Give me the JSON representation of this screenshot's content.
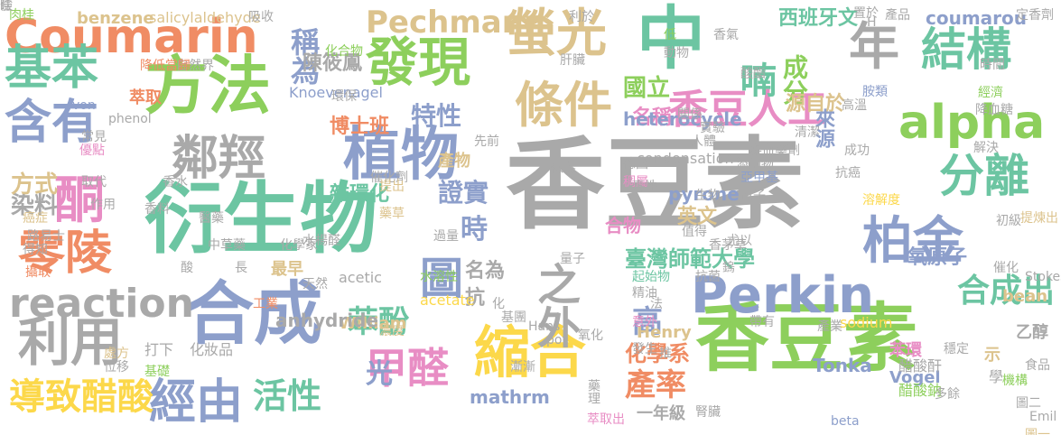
{
  "palette": {
    "gray": "#a9a9a9",
    "green": "#8dcf5c",
    "teal": "#6cc5a2",
    "blue": "#8d9fcb",
    "orange": "#f08c64",
    "pink": "#e88dc4",
    "yellow": "#fcd84a",
    "tan": "#dcc38d"
  },
  "words": [
    {
      "text": "香豆素",
      "color": "gray"
    },
    {
      "text": "香豆素",
      "color": "green"
    },
    {
      "text": "衍生物",
      "color": "teal"
    },
    {
      "text": "方法",
      "color": "green"
    },
    {
      "text": "合成",
      "color": "blue"
    },
    {
      "text": "中",
      "color": "teal"
    },
    {
      "text": "Perkin",
      "color": "blue"
    },
    {
      "text": "Coumarin",
      "color": "orange"
    },
    {
      "text": "螢光",
      "color": "tan"
    },
    {
      "text": "發現",
      "color": "green"
    },
    {
      "text": "植物",
      "color": "blue"
    },
    {
      "text": "縮合",
      "color": "yellow"
    },
    {
      "text": "年",
      "color": "gray"
    },
    {
      "text": "結構",
      "color": "teal"
    },
    {
      "text": "基苯",
      "color": "teal"
    },
    {
      "text": "含有",
      "color": "blue"
    },
    {
      "text": "利用",
      "color": "gray"
    },
    {
      "text": "零陵",
      "color": "orange"
    },
    {
      "text": "alpha",
      "color": "green"
    },
    {
      "text": "柏金",
      "color": "blue"
    },
    {
      "text": "分離",
      "color": "teal"
    },
    {
      "text": "鄰羥",
      "color": "gray"
    },
    {
      "text": "香豆人工",
      "color": "pink"
    },
    {
      "text": "條件",
      "color": "tan"
    },
    {
      "text": "之外",
      "color": "gray"
    },
    {
      "text": "酮",
      "color": "pink"
    },
    {
      "text": "甲醛",
      "color": "pink"
    },
    {
      "text": "經由",
      "color": "blue"
    },
    {
      "text": "圖",
      "color": "blue"
    },
    {
      "text": "reaction",
      "color": "gray"
    },
    {
      "text": "導致醋酸",
      "color": "yellow"
    },
    {
      "text": "活性",
      "color": "teal"
    },
    {
      "text": "喃",
      "color": "teal"
    },
    {
      "text": "Pechmann",
      "color": "tan"
    },
    {
      "text": "稱為",
      "color": "blue"
    },
    {
      "text": "合成出",
      "color": "teal"
    },
    {
      "text": "特性",
      "color": "blue"
    },
    {
      "text": "苯酚",
      "color": "teal"
    },
    {
      "text": "證實",
      "color": "blue"
    },
    {
      "text": "時",
      "color": "blue"
    },
    {
      "text": "產率",
      "color": "orange"
    },
    {
      "text": "成分",
      "color": "green"
    },
    {
      "text": "國立",
      "color": "green"
    },
    {
      "text": "染料",
      "color": "gray"
    },
    {
      "text": "方式",
      "color": "tan"
    },
    {
      "text": "臺灣師範大學",
      "color": "teal"
    },
    {
      "text": "化學系",
      "color": "orange"
    },
    {
      "text": "高",
      "color": "blue"
    },
    {
      "text": "光",
      "color": "blue"
    },
    {
      "text": "抗",
      "color": "gray"
    },
    {
      "text": "名為",
      "color": "gray"
    },
    {
      "text": "雜環化",
      "color": "teal"
    },
    {
      "text": "博士班",
      "color": "orange"
    },
    {
      "text": "名稱",
      "color": "pink"
    },
    {
      "text": "陳筱鳳",
      "color": "gray"
    },
    {
      "text": "源自於",
      "color": "tan"
    },
    {
      "text": "來源",
      "color": "blue"
    },
    {
      "text": "西班牙文",
      "color": "teal"
    },
    {
      "text": "coumarou",
      "color": "blue"
    },
    {
      "text": "heterocycle",
      "color": "blue"
    },
    {
      "text": "benzene",
      "color": "tan"
    },
    {
      "text": "salicylaldehyde",
      "color": "tan"
    },
    {
      "text": "Knoevenagel",
      "color": "blue"
    },
    {
      "text": "condensation",
      "color": "gray"
    },
    {
      "text": "pyrone",
      "color": "blue"
    },
    {
      "text": "英文",
      "color": "tan"
    },
    {
      "text": "氧原子",
      "color": "blue"
    },
    {
      "text": "苯環",
      "color": "pink"
    },
    {
      "text": "Vogel",
      "color": "blue"
    },
    {
      "text": "Tonka",
      "color": "blue"
    },
    {
      "text": "mathrm",
      "color": "blue"
    },
    {
      "text": "一年級",
      "color": "gray"
    },
    {
      "text": "合物",
      "color": "pink"
    },
    {
      "text": "產物",
      "color": "tan"
    },
    {
      "text": "最早",
      "color": "tan"
    },
    {
      "text": "William",
      "color": "tan"
    },
    {
      "text": "anhydride",
      "color": "gray"
    },
    {
      "text": "acetate",
      "color": "yellow"
    },
    {
      "text": "acetic",
      "color": "gray"
    },
    {
      "text": "Henry",
      "color": "tan"
    },
    {
      "text": "sodium",
      "color": "yellow"
    },
    {
      "text": "bean",
      "color": "tan"
    },
    {
      "text": "phenol",
      "color": "gray"
    },
    {
      "text": "von",
      "color": "blue"
    },
    {
      "text": "Hans",
      "color": "gray"
    },
    {
      "text": "pot",
      "color": "gray"
    },
    {
      "text": "Emil",
      "color": "gray"
    },
    {
      "text": "Stokes",
      "color": "gray"
    },
    {
      "text": "beta",
      "color": "blue"
    },
    {
      "text": "肉桂",
      "color": "green"
    },
    {
      "text": "萃取",
      "color": "orange"
    },
    {
      "text": "自然界",
      "color": "gray"
    },
    {
      "text": "降低當歸",
      "color": "orange"
    },
    {
      "text": "化合物",
      "color": "green"
    },
    {
      "text": "環保",
      "color": "gray"
    },
    {
      "text": "天然",
      "color": "gray"
    },
    {
      "text": "化妝品",
      "color": "gray"
    },
    {
      "text": "乙醇",
      "color": "gray"
    },
    {
      "text": "醋酸鈉",
      "color": "green"
    },
    {
      "text": "醋酸酐",
      "color": "gray"
    },
    {
      "text": "催化劑",
      "color": "gray"
    },
    {
      "text": "電子",
      "color": "gray"
    },
    {
      "text": "溶解度",
      "color": "yellow"
    },
    {
      "text": "提煉出",
      "color": "tan"
    },
    {
      "text": "初級",
      "color": "gray"
    },
    {
      "text": "經濟",
      "color": "green"
    },
    {
      "text": "高溫",
      "color": "gray"
    },
    {
      "text": "胺類",
      "color": "blue"
    },
    {
      "text": "成功",
      "color": "gray"
    },
    {
      "text": "解決",
      "color": "gray"
    },
    {
      "text": "水楊醛",
      "color": "gray"
    },
    {
      "text": "水溶性",
      "color": "green"
    },
    {
      "text": "起始物",
      "color": "teal"
    },
    {
      "text": "精油",
      "color": "gray"
    },
    {
      "text": "意外",
      "color": "pink"
    },
    {
      "text": "漸漸",
      "color": "gray"
    },
    {
      "text": "濃度",
      "color": "tan"
    },
    {
      "text": "打下",
      "color": "gray"
    },
    {
      "text": "基礎",
      "color": "green"
    },
    {
      "text": "處方",
      "color": "tan"
    },
    {
      "text": "位移",
      "color": "gray"
    },
    {
      "text": "帶有",
      "color": "gray"
    },
    {
      "text": "示",
      "color": "tan"
    },
    {
      "text": "學",
      "color": "gray"
    },
    {
      "text": "催化",
      "color": "gray"
    },
    {
      "text": "機構",
      "color": "green"
    },
    {
      "text": "穩定",
      "color": "gray"
    },
    {
      "text": "食品",
      "color": "gray"
    },
    {
      "text": "圖一",
      "color": "tan"
    },
    {
      "text": "圖二",
      "color": "gray"
    },
    {
      "text": "多餘",
      "color": "gray"
    },
    {
      "text": "尤以",
      "color": "gray"
    },
    {
      "text": "鎢",
      "color": "gray"
    },
    {
      "text": "香茅草",
      "color": "gray"
    },
    {
      "text": "產業",
      "color": "gray"
    },
    {
      "text": "酸酯",
      "color": "gray"
    },
    {
      "text": "凝血藥劑",
      "color": "gray"
    },
    {
      "text": "亞甲基",
      "color": "blue"
    },
    {
      "text": "稠屬",
      "color": "pink"
    },
    {
      "text": "保養",
      "color": "gray"
    },
    {
      "text": "提出",
      "color": "tan"
    },
    {
      "text": "藥草",
      "color": "tan"
    },
    {
      "text": "醫藥",
      "color": "gray"
    },
    {
      "text": "中草藥",
      "color": "gray"
    },
    {
      "text": "化學家",
      "color": "gray"
    },
    {
      "text": "酸",
      "color": "gray"
    },
    {
      "text": "長",
      "color": "gray"
    },
    {
      "text": "工業",
      "color": "orange"
    },
    {
      "text": "過量",
      "color": "gray"
    },
    {
      "text": "癌症",
      "color": "tan"
    },
    {
      "text": "路易士",
      "color": "gray"
    },
    {
      "text": "得知",
      "color": "gray"
    },
    {
      "text": "攝取",
      "color": "orange"
    },
    {
      "text": "取代",
      "color": "gray"
    },
    {
      "text": "作用",
      "color": "gray"
    },
    {
      "text": "香水",
      "color": "gray"
    },
    {
      "text": "香料",
      "color": "gray"
    },
    {
      "text": "常見",
      "color": "gray"
    },
    {
      "text": "優點",
      "color": "pink"
    },
    {
      "text": "先前",
      "color": "gray"
    },
    {
      "text": "吸收",
      "color": "gray"
    },
    {
      "text": "利於",
      "color": "gray"
    },
    {
      "text": "低",
      "color": "green"
    },
    {
      "text": "香氣",
      "color": "gray"
    },
    {
      "text": "動物",
      "color": "gray"
    },
    {
      "text": "定香劑",
      "color": "gray"
    },
    {
      "text": "產品",
      "color": "gray"
    },
    {
      "text": "置於",
      "color": "gray"
    },
    {
      "text": "H",
      "color": "gray"
    },
    {
      "text": "時間",
      "color": "gray"
    },
    {
      "text": "降血糖",
      "color": "gray"
    },
    {
      "text": "清潔",
      "color": "gray"
    },
    {
      "text": "抗癌",
      "color": "gray"
    },
    {
      "text": "關係",
      "color": "gray"
    },
    {
      "text": "實驗",
      "color": "gray"
    },
    {
      "text": "人體",
      "color": "gray"
    },
    {
      "text": "德國",
      "color": "gray"
    },
    {
      "text": "添加物",
      "color": "gray"
    },
    {
      "text": "毒性",
      "color": "gray"
    },
    {
      "text": "生物",
      "color": "gray"
    },
    {
      "text": "值得",
      "color": "gray"
    },
    {
      "text": "腎臟",
      "color": "gray"
    },
    {
      "text": "抗菌",
      "color": "gray"
    },
    {
      "text": "法",
      "color": "gray"
    },
    {
      "text": "藥理",
      "color": "gray"
    },
    {
      "text": "發生",
      "color": "gray"
    },
    {
      "text": "推",
      "color": "gray"
    },
    {
      "text": "萃取出",
      "color": "pink"
    },
    {
      "text": "氧化",
      "color": "gray"
    },
    {
      "text": "量子",
      "color": "gray"
    },
    {
      "text": "基團",
      "color": "gray"
    },
    {
      "text": "化",
      "color": "gray"
    },
    {
      "text": "肝臟",
      "color": "gray"
    },
    {
      "text": "瞼",
      "color": "gray"
    },
    {
      "text": "佳",
      "color": "gray"
    }
  ]
}
